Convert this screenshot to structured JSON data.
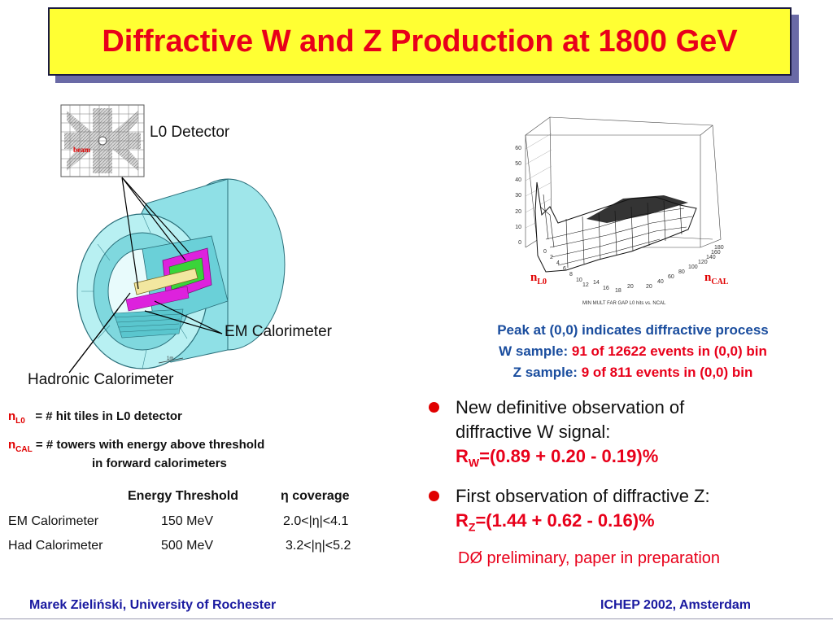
{
  "title": "Diffractive W and Z Production at 1800 GeV",
  "detector": {
    "l0_label": "L0 Detector",
    "beam_label": "beam",
    "em_label": "EM Calorimeter",
    "had_label": "Hadronic Calorimeter",
    "scale_label": "1m"
  },
  "plot": {
    "z_ticks": [
      "60",
      "50",
      "40",
      "30",
      "20",
      "10",
      "0"
    ],
    "x_ticks": [
      "0",
      "2",
      "4",
      "6",
      "8",
      "10",
      "12",
      "14",
      "16",
      "18",
      "20"
    ],
    "y_ticks": [
      "20",
      "40",
      "60",
      "80",
      "100",
      "120",
      "140",
      "160",
      "180"
    ],
    "n_l0_main": "n",
    "n_l0_sub": "L0",
    "n_cal_main": "n",
    "n_cal_sub": "CAL",
    "caption": "MIN MULT FAR GAP L0 hits vs. NCAL"
  },
  "peak": {
    "line1": "Peak at (0,0) indicates diffractive process",
    "w_label": "W sample:",
    "w_value": "91 of 12622 events in (0,0) bin",
    "z_label": "Z sample:",
    "z_value": "9 of 811 events in (0,0) bin"
  },
  "definitions": {
    "nl0_main": "n",
    "nl0_sub": "L0",
    "nl0_text": "=  #  hit tiles in L0 detector",
    "ncal_main": "n",
    "ncal_sub": "CAL",
    "ncal_text": "=  #  towers with energy above threshold",
    "ncal_text2": "in forward calorimeters"
  },
  "threshold_table": {
    "header_energy": "Energy Threshold",
    "header_eta": "η coverage",
    "rows": [
      {
        "name": "EM Calorimeter",
        "energy": "150 MeV",
        "eta": "2.0<|η|<4.1"
      },
      {
        "name": "Had Calorimeter",
        "energy": "500 MeV",
        "eta": "3.2<|η|<5.2"
      }
    ]
  },
  "bullets": {
    "b1_line1": "New definitive observation of",
    "b1_line2": "diffractive W signal:",
    "b1_result_main": "R",
    "b1_result_sub": "W",
    "b1_result_val": "=(0.89 + 0.20 - 0.19)%",
    "b2_line1": "First observation of diffractive Z:",
    "b2_result_main": "R",
    "b2_result_sub": "Z",
    "b2_result_val": "=(1.44 + 0.62 - 0.16)%",
    "prelim": "DØ  preliminary, paper in preparation"
  },
  "footer": {
    "author": "Marek Zieliński, University of Rochester",
    "conference": "ICHEP 2002, Amsterdam"
  },
  "colors": {
    "title_bg": "#ffff33",
    "title_text": "#e8001a",
    "accent_blue": "#1a4d9e",
    "footer_blue": "#1a1aa0",
    "calorimeter": "#7fe8ec"
  }
}
